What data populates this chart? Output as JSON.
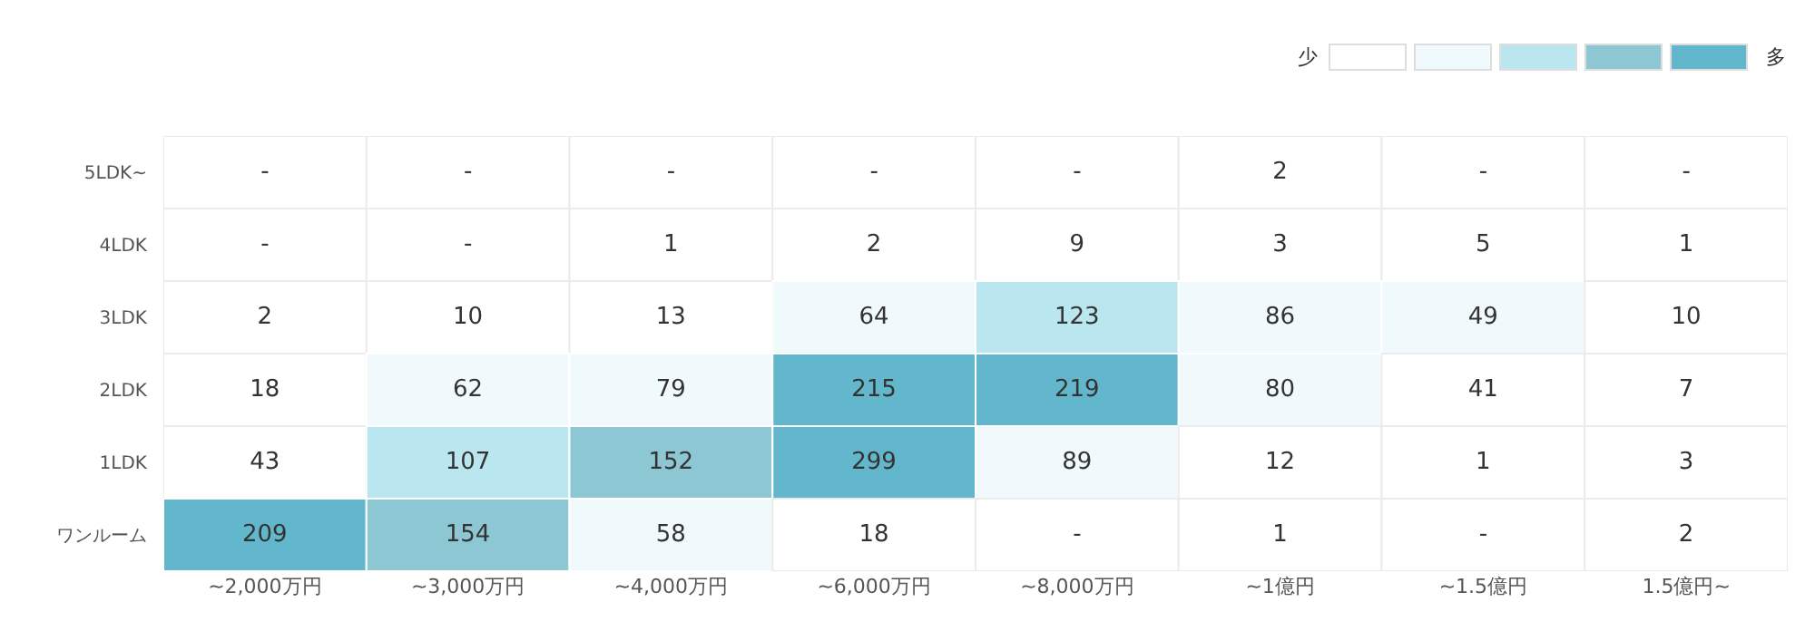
{
  "chart_data": {
    "type": "heatmap",
    "categories": [
      "~2,000万円",
      "~3,000万円",
      "~4,000万円",
      "~6,000万円",
      "~8,000万円",
      "~1億円",
      "~1.5億円",
      "1.5億円~"
    ],
    "y_categories": [
      "5LDK~",
      "4LDK",
      "3LDK",
      "2LDK",
      "1LDK",
      "ワンルーム"
    ],
    "cells": [
      [
        null,
        null,
        null,
        null,
        null,
        2,
        null,
        null
      ],
      [
        null,
        null,
        1,
        2,
        9,
        3,
        5,
        1
      ],
      [
        2,
        10,
        13,
        64,
        123,
        86,
        49,
        10
      ],
      [
        18,
        62,
        79,
        215,
        219,
        80,
        41,
        7
      ],
      [
        43,
        107,
        152,
        299,
        89,
        12,
        1,
        3
      ],
      [
        209,
        154,
        58,
        18,
        null,
        1,
        null,
        2
      ]
    ],
    "cell_labels": [
      [
        "-",
        "-",
        "-",
        "-",
        "-",
        "2",
        "-",
        "-"
      ],
      [
        "-",
        "-",
        "1",
        "2",
        "9",
        "3",
        "5",
        "1"
      ],
      [
        "2",
        "10",
        "13",
        "64",
        "123",
        "86",
        "49",
        "10"
      ],
      [
        "18",
        "62",
        "79",
        "215",
        "219",
        "80",
        "41",
        "7"
      ],
      [
        "43",
        "107",
        "152",
        "299",
        "89",
        "12",
        "1",
        "3"
      ],
      [
        "209",
        "154",
        "58",
        "18",
        "-",
        "1",
        "-",
        "2"
      ]
    ],
    "colors": [
      [
        "#ffffff",
        "#ffffff",
        "#ffffff",
        "#ffffff",
        "#ffffff",
        "#ffffff",
        "#ffffff",
        "#ffffff"
      ],
      [
        "#ffffff",
        "#ffffff",
        "#ffffff",
        "#ffffff",
        "#ffffff",
        "#ffffff",
        "#ffffff",
        "#ffffff"
      ],
      [
        "#ffffff",
        "#ffffff",
        "#ffffff",
        "#f0fafd",
        "#b9e6ef",
        "#f0fafd",
        "#f0fafd",
        "#ffffff"
      ],
      [
        "#ffffff",
        "#f0fafd",
        "#f0fafd",
        "#62b7cc",
        "#62b7cc",
        "#f0fafd",
        "#ffffff",
        "#ffffff"
      ],
      [
        "#ffffff",
        "#b9e6ef",
        "#8ec7d4",
        "#62b7cc",
        "#f0fafd",
        "#ffffff",
        "#ffffff",
        "#ffffff"
      ],
      [
        "#62b7cc",
        "#8ec7d4",
        "#f0fafd",
        "#ffffff",
        "#ffffff",
        "#ffffff",
        "#ffffff",
        "#ffffff"
      ]
    ],
    "annotations": [
      "少",
      "多"
    ]
  }
}
